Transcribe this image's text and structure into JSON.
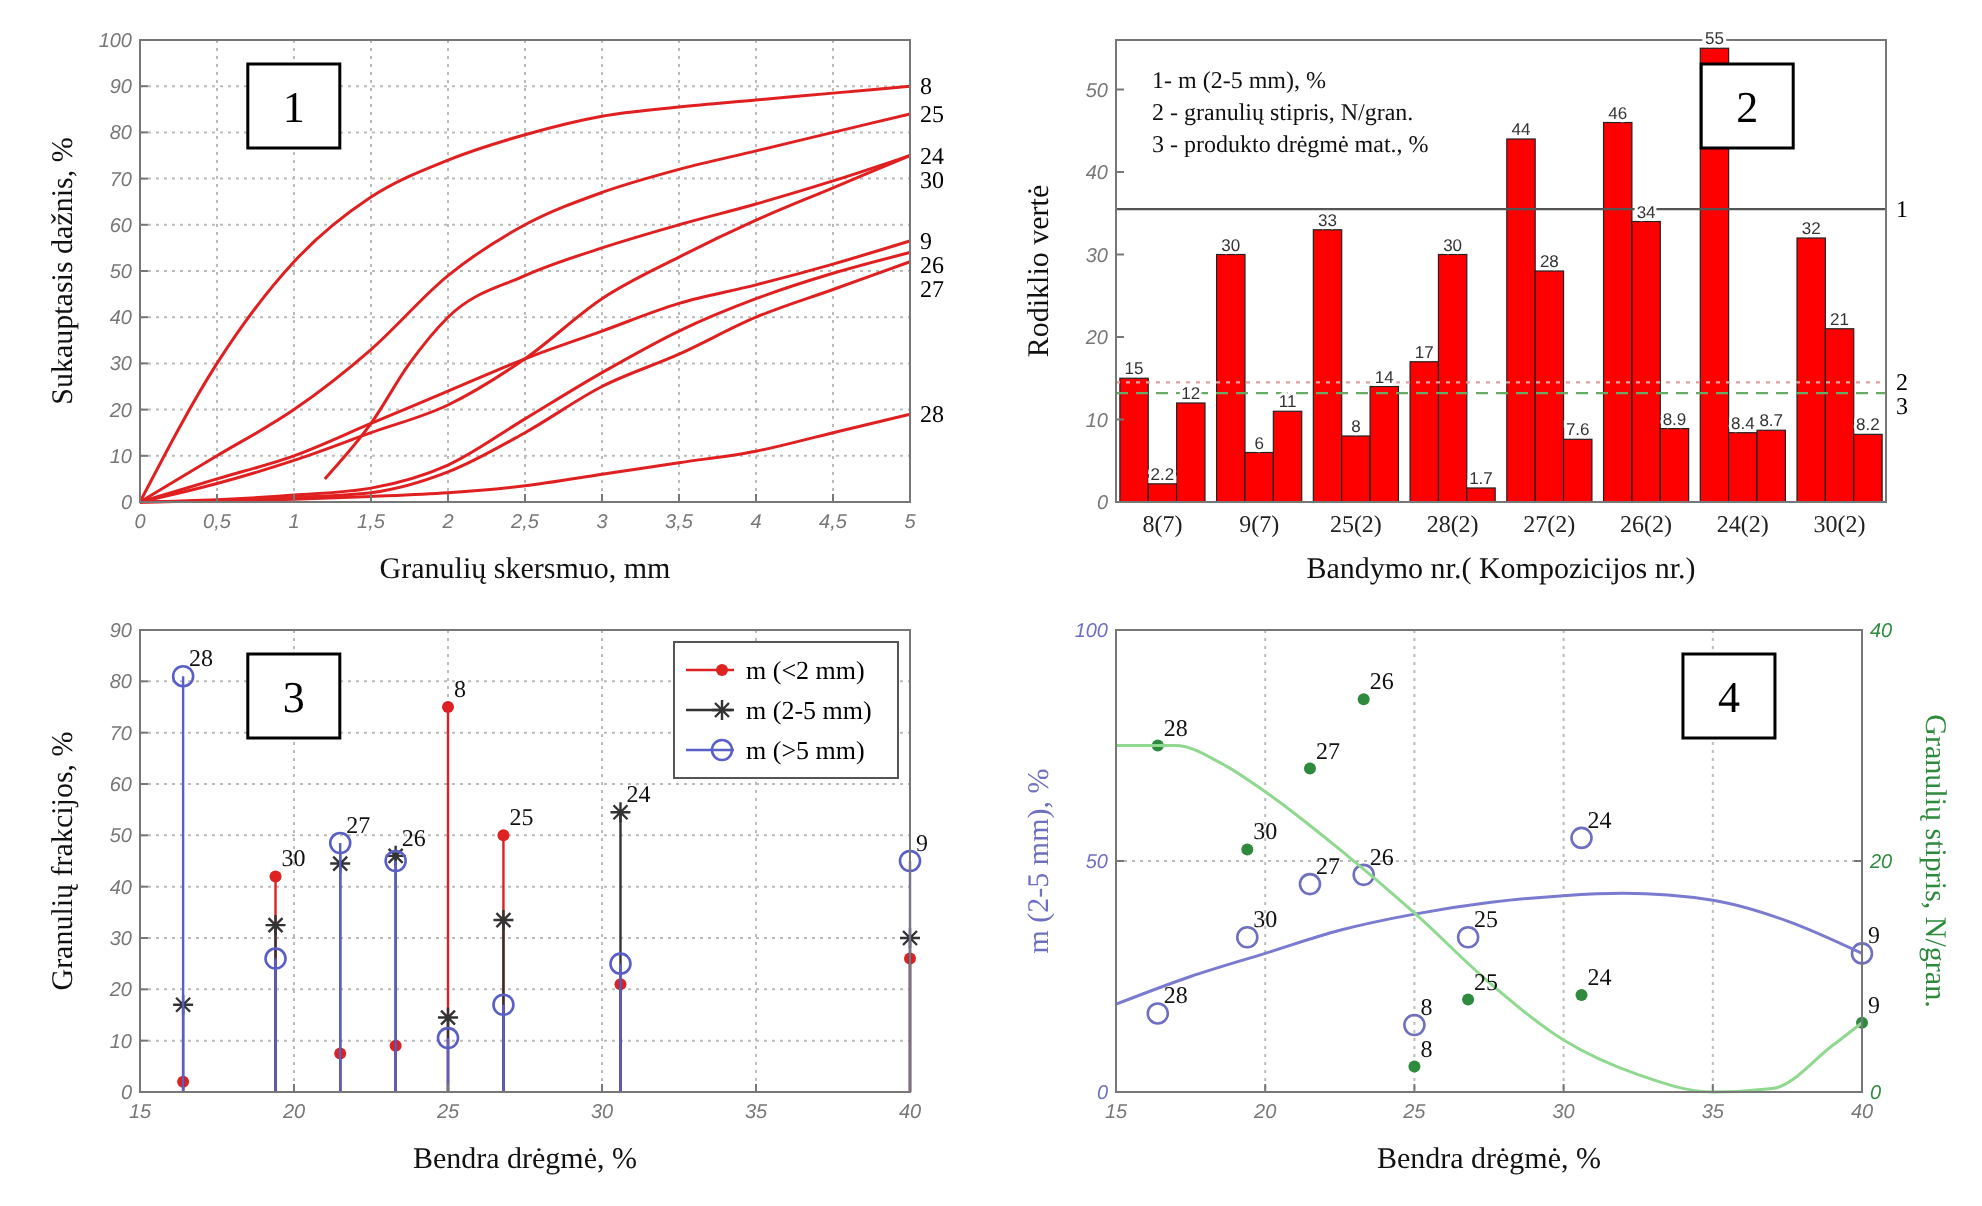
{
  "chart_data": [
    {
      "type": "line",
      "xlabel": "Granulių skersmuo, mm",
      "ylabel": "Sukauptasis dažnis, %",
      "annotations": [
        "1"
      ],
      "x": [
        0,
        0.5,
        1,
        1.5,
        2,
        2.5,
        3,
        3.5,
        4,
        4.5,
        5
      ],
      "xlim": [
        0,
        5
      ],
      "xticks": [
        0,
        {
          "value": 0.5,
          "label": "0,5"
        },
        1,
        {
          "value": 1.5,
          "label": "1,5"
        },
        2,
        {
          "value": 2.5,
          "label": "2,5"
        },
        3,
        {
          "value": 3.5,
          "label": "3,5"
        },
        4,
        {
          "value": 4.5,
          "label": "4,5"
        },
        5
      ],
      "ylim": [
        0,
        100
      ],
      "yticks": [
        0,
        10,
        20,
        30,
        40,
        50,
        60,
        70,
        80,
        90,
        100
      ],
      "grid": true,
      "legend": false,
      "line_style": "solid",
      "series": [
        {
          "name": "8",
          "color": "#e02020",
          "values": [
            0,
            30,
            52,
            66,
            74,
            79.5,
            83.5,
            85.5,
            87,
            88.5,
            90
          ]
        },
        {
          "name": "25",
          "color": "#e02020",
          "values": [
            0,
            10,
            20,
            33,
            49,
            60,
            67,
            72,
            76,
            80,
            84
          ]
        },
        {
          "name": "24",
          "color": "#e02020",
          "values": [
            0,
            4,
            9,
            15,
            21,
            31,
            44,
            53,
            61,
            68,
            75
          ]
        },
        {
          "name": "9",
          "color": "#e02020",
          "values": [
            0,
            5,
            10,
            17,
            24,
            31,
            37,
            43,
            47,
            51.5,
            56.5
          ]
        },
        {
          "name": "26",
          "color": "#e02020",
          "values": [
            0,
            0.5,
            1.5,
            3,
            8,
            18,
            28,
            37,
            44,
            49.5,
            54
          ]
        },
        {
          "name": "30",
          "color": "#e02020",
          "x": [
            1.2,
            1.5,
            1.75,
            2,
            2.5,
            3,
            3.5,
            4,
            4.5,
            5
          ],
          "values": [
            5,
            17,
            30,
            40,
            49,
            55,
            60,
            64.5,
            69.5,
            75
          ]
        },
        {
          "name": "27",
          "color": "#e02020",
          "values": [
            0,
            0.3,
            1,
            2,
            6.5,
            15,
            25,
            32,
            40,
            46,
            52
          ]
        },
        {
          "name": "28",
          "color": "#e02020",
          "values": [
            0,
            0.2,
            0.6,
            1.2,
            2,
            3.5,
            6,
            8.5,
            11,
            15,
            19
          ]
        }
      ]
    },
    {
      "type": "bar",
      "xlabel": "Bandymo nr.( Kompozicijos nr.)",
      "ylabel": "Rodiklio vertė",
      "annotations": [
        "2",
        "1- m (2-5 mm), %",
        "2 - granulių stipris, N/gran.",
        "3 - produkto drėgmė mat., %",
        "1",
        "2",
        "3"
      ],
      "categories": [
        "8(7)",
        "9(7)",
        "25(2)",
        "28(2)",
        "27(2)",
        "26(2)",
        "24(2)",
        "30(2)"
      ],
      "ylim": [
        0,
        56
      ],
      "yticks": [
        0,
        10,
        20,
        30,
        40,
        50
      ],
      "data_labels": true,
      "series": [
        {
          "color": "#ff0000",
          "values": [
            15,
            30,
            33,
            17,
            44,
            46,
            55,
            32
          ]
        },
        {
          "color": "#ff0000",
          "values": [
            2.2,
            6,
            8,
            30,
            28,
            34,
            8.4,
            21
          ]
        },
        {
          "color": "#ff0000",
          "values": [
            12,
            11,
            14,
            1.7,
            7.6,
            8.9,
            8.7,
            8.2
          ]
        }
      ],
      "ref_lines": [
        {
          "axis": "y",
          "value": 35.5,
          "color": "#555555",
          "line_style": "solid"
        },
        {
          "axis": "y",
          "value": 14.5,
          "color": "#e0a0a0",
          "line_style": "dotted"
        },
        {
          "axis": "y",
          "value": 13.2,
          "color": "#66aa66",
          "line_style": "dashed"
        }
      ]
    },
    {
      "type": "lollipop",
      "xlabel": "Bendra drėgmė, %",
      "ylabel": "Granulių frakcijos, %",
      "x": [
        16.4,
        19.4,
        21.5,
        23.3,
        25,
        26.8,
        30.6,
        40
      ],
      "xlim": [
        15,
        40
      ],
      "xticks": [
        15,
        20,
        25,
        30,
        35,
        40
      ],
      "ylim": [
        0,
        90
      ],
      "yticks": [
        0,
        10,
        20,
        30,
        40,
        50,
        60,
        70,
        80,
        90
      ],
      "grid": true,
      "legend": "top right",
      "series": [
        {
          "name": "m (<2 mm)",
          "color": "#dd2222",
          "marker": "dot",
          "values": [
            2,
            42,
            7.5,
            9,
            75,
            50,
            21,
            26
          ]
        },
        {
          "name": "m (2-5 mm)",
          "color": "#333333",
          "marker": "cross",
          "values": [
            17,
            32.5,
            44.5,
            46,
            14.5,
            33.5,
            54.5,
            30
          ]
        },
        {
          "name": "m (>5 mm)",
          "color": "#5a5fc8",
          "marker": "circle",
          "values": [
            81,
            26,
            48.5,
            45,
            10.5,
            17,
            25,
            45
          ]
        }
      ],
      "annotations": [
        "3",
        {
          "text": "28",
          "x": 16.4,
          "y": 81
        },
        {
          "text": "30",
          "x": 19.4,
          "y": 42
        },
        {
          "text": "27",
          "x": 21.5,
          "y": 48.5
        },
        {
          "text": "26",
          "x": 23.3,
          "y": 46
        },
        {
          "text": "8",
          "x": 25,
          "y": 75
        },
        {
          "text": "25",
          "x": 26.8,
          "y": 50
        },
        {
          "text": "24",
          "x": 30.6,
          "y": 54.5
        },
        {
          "text": "9",
          "x": 40,
          "y": 45
        }
      ]
    },
    {
      "type": "scatter",
      "xlabel": "Bendra drėgmė, %",
      "ylabel": "m (2-5 mm), %",
      "y2label": "Granulių stipris, N/gran.",
      "xlim": [
        15,
        40
      ],
      "xticks": [
        15,
        20,
        25,
        30,
        35,
        40
      ],
      "ylim": [
        0,
        100
      ],
      "yticks": [
        0,
        50,
        100
      ],
      "y2lim": [
        0,
        40
      ],
      "y2ticks": [
        0,
        20,
        40
      ],
      "grid": true,
      "series": [
        {
          "color": "#6f6fc0",
          "marker": "circle",
          "x": [
            16.4,
            19.4,
            21.5,
            23.3,
            25,
            26.8,
            30.6,
            40
          ],
          "values": [
            17,
            33.5,
            45,
            47,
            14.5,
            33.5,
            55,
            30
          ]
        },
        {
          "color": "#2e8b3e",
          "marker": "dot",
          "axis": "y2",
          "x": [
            16.4,
            19.4,
            21.5,
            23.3,
            25,
            26.8,
            30.6,
            40
          ],
          "values": [
            30,
            21,
            28,
            34,
            2.2,
            8,
            8.4,
            6
          ]
        },
        {
          "type": "line",
          "color": "#7a7ad0",
          "x": [
            15,
            17.5,
            20,
            22.5,
            25,
            27.5,
            30,
            32,
            35,
            37.5,
            40
          ],
          "values": [
            19,
            25,
            30,
            35,
            38.5,
            41,
            42.5,
            43,
            41.5,
            37,
            30
          ]
        },
        {
          "type": "line",
          "color": "#8fd88f",
          "axis": "y2",
          "x": [
            15,
            17,
            18.5,
            20,
            22.5,
            25,
            27.5,
            30,
            32.5,
            35,
            37,
            39,
            40
          ],
          "values": [
            30,
            30,
            28.5,
            26,
            21,
            15.5,
            9.5,
            4.5,
            1.5,
            0,
            0.3,
            4,
            6
          ]
        }
      ],
      "annotations": [
        "4",
        {
          "text": "28",
          "x": 16.4,
          "y": 17
        },
        {
          "text": "30",
          "x": 19.4,
          "y": 33.5
        },
        {
          "text": "27",
          "x": 21.5,
          "y": 45
        },
        {
          "text": "26",
          "x": 23.3,
          "y": 47
        },
        {
          "text": "8",
          "x": 25,
          "y": 14.5
        },
        {
          "text": "25",
          "x": 26.8,
          "y": 33.5
        },
        {
          "text": "24",
          "x": 30.6,
          "y": 55
        },
        {
          "text": "9",
          "x": 40,
          "y": 30
        },
        {
          "text": "28",
          "x": 16.4,
          "y": 75
        },
        {
          "text": "30",
          "x": 19.4,
          "y": 52.5
        },
        {
          "text": "27",
          "x": 21.5,
          "y": 70
        },
        {
          "text": "26",
          "x": 23.3,
          "y": 85
        },
        {
          "text": "8",
          "x": 25,
          "y": 5.5
        },
        {
          "text": "25",
          "x": 26.8,
          "y": 20
        },
        {
          "text": "24",
          "x": 30.6,
          "y": 21
        },
        {
          "text": "9",
          "x": 40,
          "y": 15
        }
      ]
    }
  ]
}
